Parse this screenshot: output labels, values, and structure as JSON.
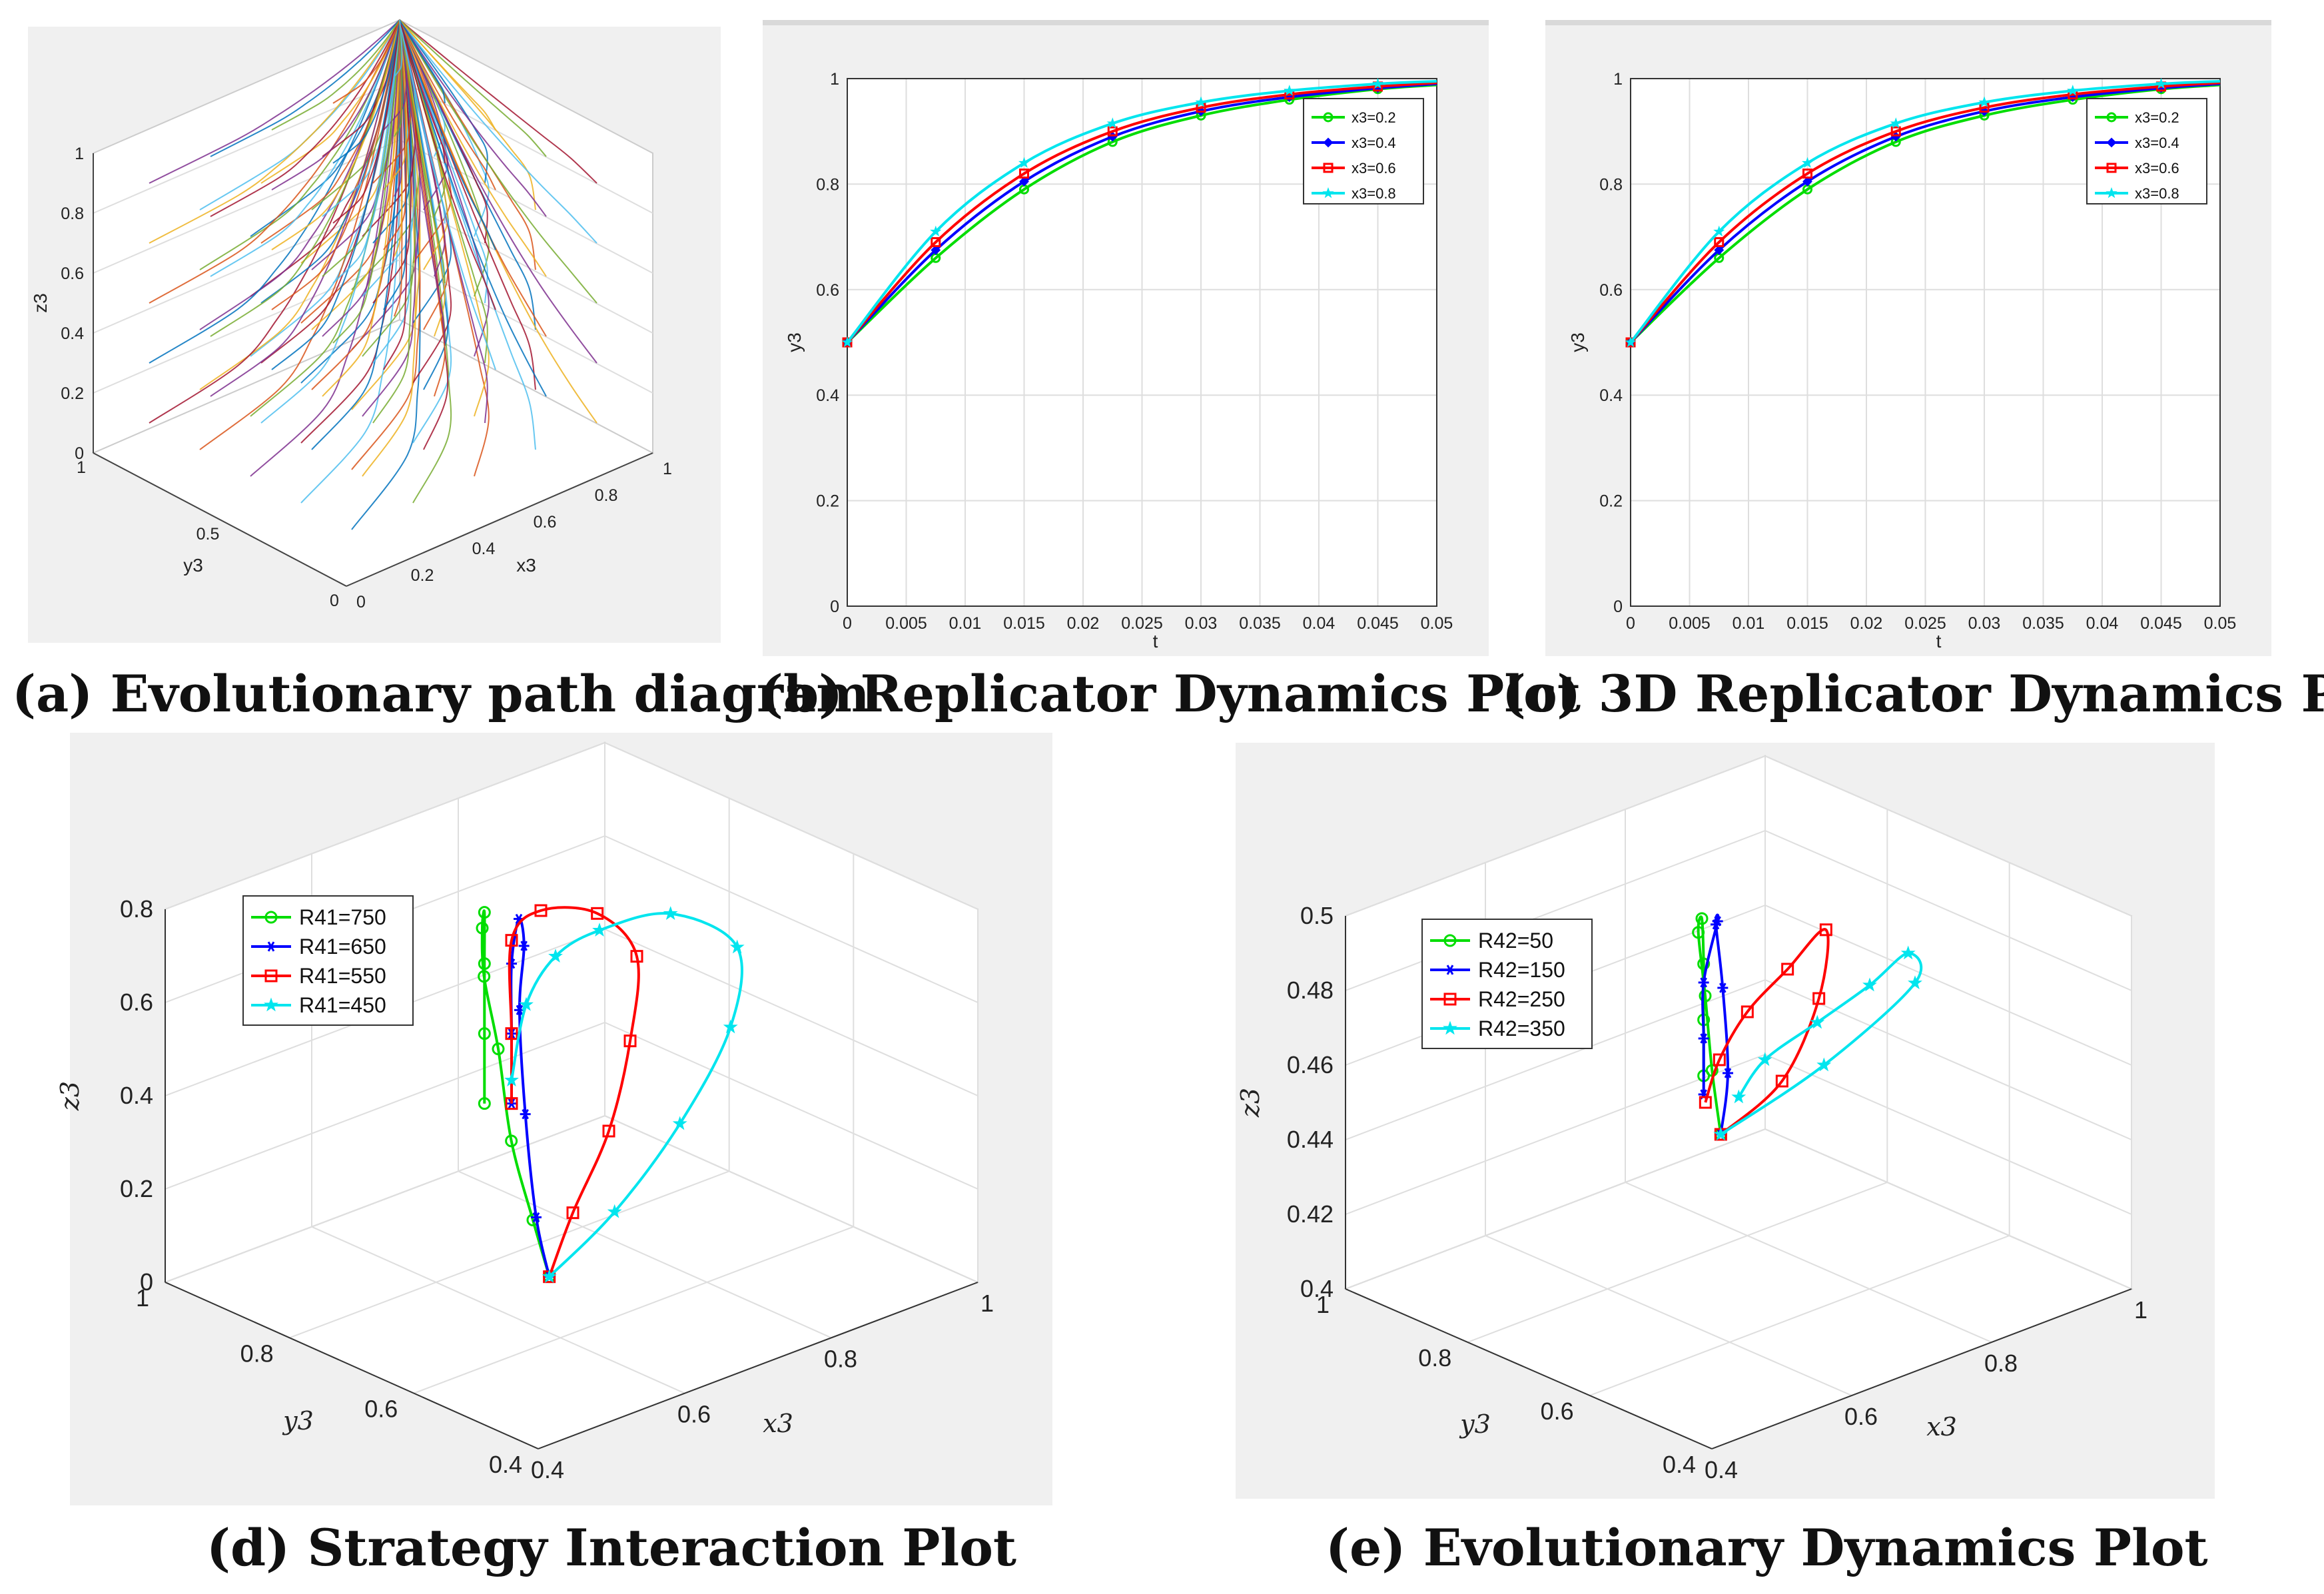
{
  "figure": {
    "captions": {
      "a": "(a) Evolutionary path diagram",
      "b": "(b) Replicator Dynamics Plot",
      "c": "(c) 3D Replicator Dynamics Plot",
      "d": "(d) Strategy Interaction Plot",
      "e": "(e) Evolutionary Dynamics Plot"
    }
  },
  "chart_data": [
    {
      "id": "a",
      "type": "line",
      "title": "(a) Evolutionary path diagram",
      "xlabel": "x3",
      "ylabel": "y3",
      "zlabel": "z3",
      "xlim": [
        0,
        1
      ],
      "ylim": [
        0,
        1
      ],
      "zlim": [
        0,
        1
      ],
      "x_ticks": [
        "0",
        "0.2",
        "0.4",
        "0.6",
        "0.8",
        "1"
      ],
      "y_ticks": [
        "0",
        "0.5",
        "1"
      ],
      "z_ticks": [
        "0",
        "0.2",
        "0.4",
        "0.6",
        "0.8",
        "1"
      ],
      "description_of_series": "many trajectories converging to (1,1,1)",
      "start_grid": [
        0.1,
        0.3,
        0.5,
        0.7,
        0.9
      ],
      "end_point": [
        1,
        1,
        1
      ],
      "palette": [
        "#0072bd",
        "#d95319",
        "#edb120",
        "#7e2f8e",
        "#77ac30",
        "#4dbeee",
        "#a2142f"
      ]
    },
    {
      "id": "b",
      "type": "line",
      "title": "(b) Replicator Dynamics Plot",
      "xlabel": "t",
      "ylabel": "y3",
      "xlim": [
        0,
        0.05
      ],
      "ylim": [
        0,
        1
      ],
      "x_ticks": [
        "0",
        "0.005",
        "0.01",
        "0.015",
        "0.02",
        "0.025",
        "0.03",
        "0.035",
        "0.04",
        "0.045",
        "0.05"
      ],
      "y_ticks": [
        "0",
        "0.2",
        "0.4",
        "0.6",
        "0.8",
        "1"
      ],
      "legend_position": "top-right",
      "x": [
        0,
        0.0075,
        0.015,
        0.0225,
        0.03,
        0.0375,
        0.045,
        0.05
      ],
      "series": [
        {
          "name": "x3=0.2",
          "color": "#00dd00",
          "marker": "circle",
          "values": [
            0.5,
            0.66,
            0.79,
            0.88,
            0.93,
            0.96,
            0.98,
            0.988
          ]
        },
        {
          "name": "x3=0.4",
          "color": "#0000ff",
          "marker": "diamond",
          "values": [
            0.5,
            0.675,
            0.805,
            0.89,
            0.938,
            0.965,
            0.982,
            0.99
          ]
        },
        {
          "name": "x3=0.6",
          "color": "#ff0000",
          "marker": "square",
          "values": [
            0.5,
            0.69,
            0.82,
            0.9,
            0.945,
            0.97,
            0.985,
            0.992
          ]
        },
        {
          "name": "x3=0.8",
          "color": "#00e5ee",
          "marker": "star",
          "values": [
            0.5,
            0.71,
            0.84,
            0.915,
            0.955,
            0.977,
            0.99,
            0.995
          ]
        }
      ]
    },
    {
      "id": "c",
      "type": "line",
      "title": "(c) 3D Replicator Dynamics Plot",
      "xlabel": "t",
      "ylabel": "y3",
      "xlim": [
        0,
        0.05
      ],
      "ylim": [
        0,
        1
      ],
      "x_ticks": [
        "0",
        "0.005",
        "0.01",
        "0.015",
        "0.02",
        "0.025",
        "0.03",
        "0.035",
        "0.04",
        "0.045",
        "0.05"
      ],
      "y_ticks": [
        "0",
        "0.2",
        "0.4",
        "0.6",
        "0.8",
        "1"
      ],
      "legend_position": "top-right",
      "x": [
        0,
        0.0075,
        0.015,
        0.0225,
        0.03,
        0.0375,
        0.045,
        0.05
      ],
      "series": [
        {
          "name": "x3=0.2",
          "color": "#00dd00",
          "marker": "circle",
          "values": [
            0.5,
            0.66,
            0.79,
            0.88,
            0.93,
            0.96,
            0.98,
            0.988
          ]
        },
        {
          "name": "x3=0.4",
          "color": "#0000ff",
          "marker": "diamond",
          "values": [
            0.5,
            0.675,
            0.805,
            0.89,
            0.938,
            0.965,
            0.982,
            0.99
          ]
        },
        {
          "name": "x3=0.6",
          "color": "#ff0000",
          "marker": "square",
          "values": [
            0.5,
            0.69,
            0.82,
            0.9,
            0.945,
            0.97,
            0.985,
            0.992
          ]
        },
        {
          "name": "x3=0.8",
          "color": "#00e5ee",
          "marker": "star",
          "values": [
            0.5,
            0.71,
            0.84,
            0.915,
            0.955,
            0.977,
            0.99,
            0.995
          ]
        }
      ]
    },
    {
      "id": "d",
      "type": "line",
      "title": "(d) Strategy Interaction Plot",
      "xlabel": "x3",
      "ylabel": "y3",
      "zlabel": "z3",
      "xlim": [
        0.4,
        1
      ],
      "ylim": [
        0.4,
        1
      ],
      "zlim": [
        0,
        0.8
      ],
      "x_ticks": [
        "0.4",
        "0.6",
        "0.8",
        "1"
      ],
      "y_ticks": [
        "0.4",
        "0.6",
        "0.8",
        "1"
      ],
      "z_ticks": [
        "0",
        "0.2",
        "0.4",
        "0.6",
        "0.8"
      ],
      "legend_position": "top-left",
      "series": [
        {
          "name": "R41=750",
          "color": "#00dd00",
          "marker": "circle",
          "points": [
            [
              0.5,
              0.5,
              0.25
            ],
            [
              0.52,
              0.55,
              0.33
            ],
            [
              0.55,
              0.62,
              0.44
            ],
            [
              0.6,
              0.7,
              0.56
            ],
            [
              0.64,
              0.77,
              0.65
            ],
            [
              0.68,
              0.82,
              0.7
            ],
            [
              0.7,
              0.84,
              0.71
            ],
            [
              0.7,
              0.84,
              0.6
            ],
            [
              0.7,
              0.84,
              0.45
            ],
            [
              0.7,
              0.84,
              0.3
            ]
          ]
        },
        {
          "name": "R41=650",
          "color": "#0000ff",
          "marker": "asterisk",
          "points": [
            [
              0.5,
              0.5,
              0.25
            ],
            [
              0.55,
              0.58,
              0.3
            ],
            [
              0.62,
              0.68,
              0.42
            ],
            [
              0.68,
              0.76,
              0.56
            ],
            [
              0.72,
              0.8,
              0.65
            ],
            [
              0.73,
              0.82,
              0.69
            ],
            [
              0.72,
              0.82,
              0.6
            ],
            [
              0.72,
              0.82,
              0.45
            ],
            [
              0.72,
              0.82,
              0.3
            ]
          ]
        },
        {
          "name": "R41=550",
          "color": "#ff0000",
          "marker": "square",
          "points": [
            [
              0.5,
              0.5,
              0.25
            ],
            [
              0.6,
              0.58,
              0.28
            ],
            [
              0.7,
              0.64,
              0.36
            ],
            [
              0.78,
              0.7,
              0.47
            ],
            [
              0.84,
              0.76,
              0.58
            ],
            [
              0.82,
              0.8,
              0.66
            ],
            [
              0.76,
              0.82,
              0.69
            ],
            [
              0.72,
              0.82,
              0.65
            ],
            [
              0.72,
              0.82,
              0.45
            ],
            [
              0.72,
              0.82,
              0.3
            ]
          ]
        },
        {
          "name": "R41=450",
          "color": "#00e5ee",
          "marker": "star",
          "points": [
            [
              0.5,
              0.5,
              0.25
            ],
            [
              0.64,
              0.56,
              0.27
            ],
            [
              0.78,
              0.62,
              0.34
            ],
            [
              0.9,
              0.68,
              0.44
            ],
            [
              0.96,
              0.74,
              0.54
            ],
            [
              0.92,
              0.8,
              0.6
            ],
            [
              0.84,
              0.82,
              0.6
            ],
            [
              0.78,
              0.82,
              0.58
            ],
            [
              0.74,
              0.82,
              0.5
            ],
            [
              0.72,
              0.82,
              0.35
            ]
          ]
        }
      ]
    },
    {
      "id": "e",
      "type": "line",
      "title": "(e) Evolutionary Dynamics Plot",
      "xlabel": "x3",
      "ylabel": "y3",
      "zlabel": "z3",
      "xlim": [
        0.4,
        1
      ],
      "ylim": [
        0.4,
        1
      ],
      "zlim": [
        0.4,
        0.5
      ],
      "x_ticks": [
        "0.4",
        "0.6",
        "0.8",
        "1"
      ],
      "y_ticks": [
        "0.4",
        "0.6",
        "0.8",
        "1"
      ],
      "z_ticks": [
        "0.4",
        "0.42",
        "0.44",
        "0.46",
        "0.48",
        "0.5"
      ],
      "legend_position": "top-left",
      "series": [
        {
          "name": "R42=50",
          "color": "#00dd00",
          "marker": "circle",
          "points": [
            [
              0.5,
              0.5,
              0.47
            ],
            [
              0.54,
              0.56,
              0.48
            ],
            [
              0.6,
              0.64,
              0.49
            ],
            [
              0.66,
              0.72,
              0.497
            ],
            [
              0.7,
              0.76,
              0.495
            ],
            [
              0.72,
              0.78,
              0.48
            ],
            [
              0.72,
              0.78,
              0.465
            ],
            [
              0.72,
              0.78,
              0.45
            ]
          ]
        },
        {
          "name": "R42=150",
          "color": "#0000ff",
          "marker": "asterisk",
          "points": [
            [
              0.5,
              0.5,
              0.47
            ],
            [
              0.58,
              0.58,
              0.475
            ],
            [
              0.66,
              0.68,
              0.485
            ],
            [
              0.72,
              0.76,
              0.492
            ],
            [
              0.74,
              0.78,
              0.49
            ],
            [
              0.72,
              0.78,
              0.475
            ],
            [
              0.72,
              0.78,
              0.46
            ],
            [
              0.72,
              0.78,
              0.445
            ]
          ]
        },
        {
          "name": "R42=250",
          "color": "#ff0000",
          "marker": "square",
          "points": [
            [
              0.5,
              0.5,
              0.47
            ],
            [
              0.64,
              0.56,
              0.47
            ],
            [
              0.78,
              0.66,
              0.475
            ],
            [
              0.86,
              0.74,
              0.482
            ],
            [
              0.84,
              0.78,
              0.47
            ],
            [
              0.8,
              0.8,
              0.46
            ],
            [
              0.76,
              0.8,
              0.45
            ],
            [
              0.74,
              0.8,
              0.44
            ]
          ]
        },
        {
          "name": "R42=350",
          "color": "#00e5ee",
          "marker": "star",
          "points": [
            [
              0.5,
              0.5,
              0.47
            ],
            [
              0.7,
              0.56,
              0.47
            ],
            [
              0.9,
              0.64,
              0.472
            ],
            [
              0.96,
              0.72,
              0.47
            ],
            [
              0.94,
              0.76,
              0.46
            ],
            [
              0.9,
              0.8,
              0.45
            ],
            [
              0.86,
              0.84,
              0.44
            ],
            [
              0.84,
              0.86,
              0.43
            ]
          ]
        }
      ]
    }
  ]
}
